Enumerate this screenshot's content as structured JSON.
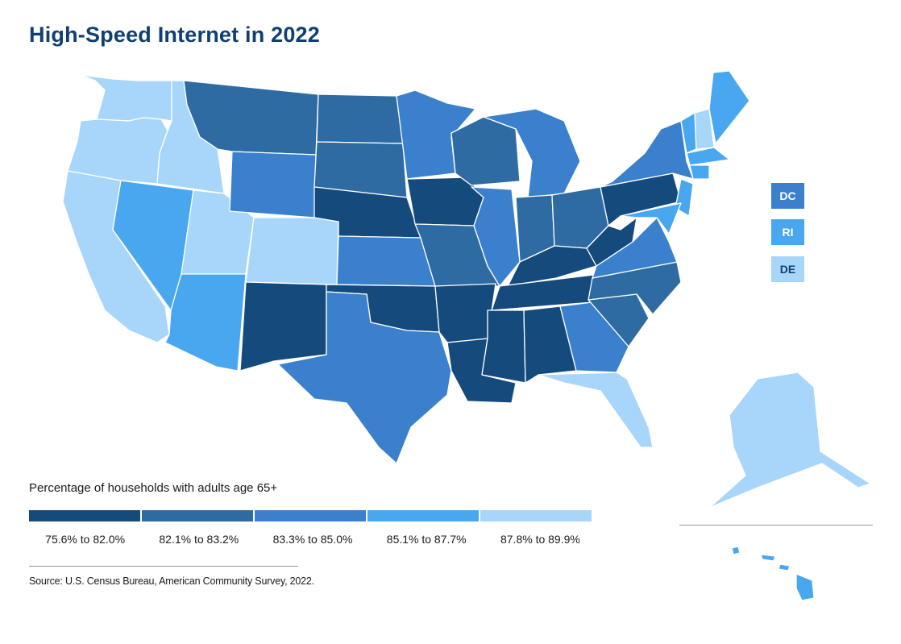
{
  "title": "High-Speed Internet in 2022",
  "legend": {
    "title": "Percentage of households with adults age 65+",
    "bins": [
      {
        "label": "75.6% to 82.0%",
        "color": "#154a7d"
      },
      {
        "label": "82.1% to 83.2%",
        "color": "#2e6ba3"
      },
      {
        "label": "83.3% to 85.0%",
        "color": "#3a80cd"
      },
      {
        "label": "85.1% to 87.7%",
        "color": "#48a7ef"
      },
      {
        "label": "87.8% to 89.9%",
        "color": "#a8d6fb"
      }
    ]
  },
  "small_states": [
    {
      "abbr": "DC",
      "bin": 2
    },
    {
      "abbr": "RI",
      "bin": 3
    },
    {
      "abbr": "DE",
      "bin": 4
    }
  ],
  "state_bins": {
    "WA": 4,
    "OR": 4,
    "CA": 4,
    "ID": 4,
    "NV": 3,
    "UT": 4,
    "AZ": 3,
    "MT": 1,
    "WY": 2,
    "CO": 4,
    "NM": 0,
    "ND": 1,
    "SD": 1,
    "NE": 0,
    "KS": 2,
    "OK": 0,
    "TX": 2,
    "MN": 2,
    "IA": 0,
    "MO": 1,
    "AR": 0,
    "LA": 0,
    "WI": 1,
    "IL": 2,
    "MI": 2,
    "IN": 1,
    "OH": 1,
    "KY": 0,
    "TN": 0,
    "MS": 0,
    "AL": 0,
    "GA": 2,
    "FL": 4,
    "SC": 1,
    "NC": 1,
    "VA": 2,
    "WV": 0,
    "PA": 0,
    "NY": 2,
    "NJ": 3,
    "MD": 3,
    "CT": 3,
    "MA": 3,
    "VT": 3,
    "NH": 4,
    "ME": 3,
    "AK": 4,
    "HI": 3
  },
  "source": "Source: U.S. Census Bureau, American Community Survey, 2022."
}
